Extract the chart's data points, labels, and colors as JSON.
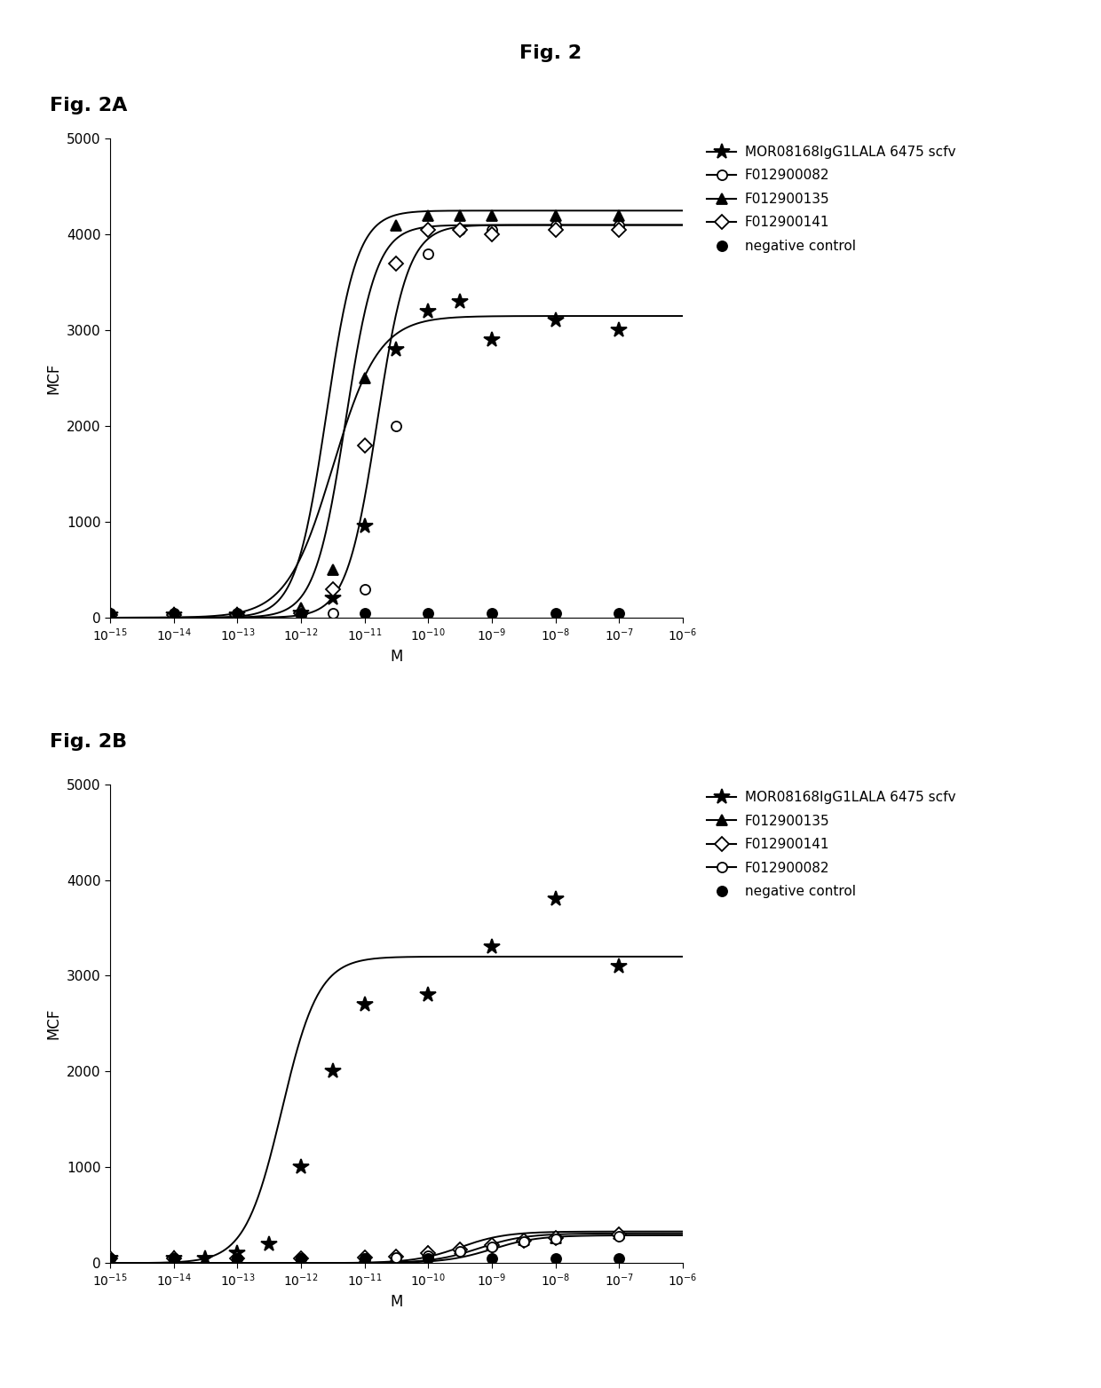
{
  "title": "Fig. 2",
  "fig2a_label": "Fig. 2A",
  "fig2b_label": "Fig. 2B",
  "ylabel": "MCF",
  "xlabel": "M",
  "panel_a": {
    "series": [
      {
        "name": "MOR08168IgG1LALA 6475 scfv",
        "marker": "star",
        "Emax": 3150,
        "EC50_log": -11.5,
        "Hill": 1.2,
        "scatter_x_log": [
          -15.0,
          -14.0,
          -13.0,
          -12.0,
          -11.5,
          -11.0,
          -10.5,
          -10.0,
          -9.5,
          -9.0,
          -8.0,
          -7.0
        ],
        "scatter_y": [
          30,
          30,
          30,
          50,
          200,
          950,
          2800,
          3200,
          3300,
          2900,
          3100,
          3000
        ]
      },
      {
        "name": "F012900082",
        "marker": "circle_open",
        "Emax": 4100,
        "EC50_log": -10.8,
        "Hill": 1.8,
        "scatter_x_log": [
          -15.0,
          -14.0,
          -13.0,
          -12.0,
          -11.5,
          -11.0,
          -10.5,
          -10.0,
          -9.5,
          -9.0,
          -8.0,
          -7.0
        ],
        "scatter_y": [
          30,
          30,
          30,
          30,
          50,
          300,
          2000,
          3800,
          4050,
          4050,
          4100,
          4100
        ]
      },
      {
        "name": "F012900135",
        "marker": "triangle_up",
        "Emax": 4250,
        "EC50_log": -11.6,
        "Hill": 1.8,
        "scatter_x_log": [
          -15.0,
          -14.0,
          -13.0,
          -12.0,
          -11.5,
          -11.0,
          -10.5,
          -10.0,
          -9.5,
          -9.0,
          -8.0,
          -7.0
        ],
        "scatter_y": [
          30,
          30,
          30,
          100,
          500,
          2500,
          4100,
          4200,
          4200,
          4200,
          4200,
          4200
        ]
      },
      {
        "name": "F012900141",
        "marker": "diamond_open",
        "Emax": 4100,
        "EC50_log": -11.3,
        "Hill": 1.8,
        "scatter_x_log": [
          -15.0,
          -14.0,
          -13.0,
          -12.0,
          -11.5,
          -11.0,
          -10.5,
          -10.0,
          -9.5,
          -9.0,
          -8.0,
          -7.0
        ],
        "scatter_y": [
          30,
          30,
          30,
          50,
          300,
          1800,
          3700,
          4050,
          4050,
          4000,
          4050,
          4050
        ]
      },
      {
        "name": "negative control",
        "marker": "circle_filled",
        "Emax": null,
        "EC50_log": null,
        "Hill": null,
        "scatter_x_log": [
          -15.0,
          -14.0,
          -13.0,
          -12.0,
          -11.0,
          -10.0,
          -9.0,
          -8.0,
          -7.0
        ],
        "scatter_y": [
          50,
          50,
          50,
          50,
          50,
          50,
          50,
          50,
          50
        ]
      }
    ]
  },
  "panel_b": {
    "series": [
      {
        "name": "MOR08168IgG1LALA 6475 scfv",
        "marker": "star",
        "Emax": 3200,
        "EC50_log": -12.3,
        "Hill": 1.5,
        "scatter_x_log": [
          -15.0,
          -14.0,
          -13.5,
          -13.0,
          -12.5,
          -12.0,
          -11.5,
          -11.0,
          -10.0,
          -9.0,
          -8.0,
          -7.0
        ],
        "scatter_y": [
          50,
          50,
          50,
          100,
          200,
          1000,
          2000,
          2700,
          2800,
          3300,
          3800,
          3100
        ]
      },
      {
        "name": "F012900135",
        "marker": "triangle_up",
        "Emax": 330,
        "EC50_log": -9.5,
        "Hill": 1.2,
        "scatter_x_log": [
          -15.0,
          -14.0,
          -13.0,
          -12.0,
          -11.0,
          -10.5,
          -10.0,
          -9.5,
          -9.0,
          -8.5,
          -8.0,
          -7.0
        ],
        "scatter_y": [
          50,
          50,
          50,
          50,
          70,
          80,
          120,
          150,
          200,
          240,
          260,
          310
        ]
      },
      {
        "name": "F012900141",
        "marker": "diamond_open",
        "Emax": 310,
        "EC50_log": -9.2,
        "Hill": 1.2,
        "scatter_x_log": [
          -15.0,
          -14.0,
          -13.0,
          -12.0,
          -11.0,
          -10.5,
          -10.0,
          -9.5,
          -9.0,
          -8.5,
          -8.0,
          -7.0
        ],
        "scatter_y": [
          50,
          50,
          50,
          50,
          60,
          70,
          100,
          140,
          190,
          230,
          260,
          300
        ]
      },
      {
        "name": "F012900082",
        "marker": "circle_open",
        "Emax": 290,
        "EC50_log": -9.0,
        "Hill": 1.2,
        "scatter_x_log": [
          -15.0,
          -14.0,
          -13.0,
          -12.0,
          -11.0,
          -10.5,
          -10.0,
          -9.5,
          -9.0,
          -8.5,
          -8.0,
          -7.0
        ],
        "scatter_y": [
          50,
          50,
          50,
          50,
          50,
          60,
          80,
          120,
          170,
          220,
          255,
          280
        ]
      },
      {
        "name": "negative control",
        "marker": "circle_filled",
        "Emax": null,
        "EC50_log": null,
        "Hill": null,
        "scatter_x_log": [
          -15.0,
          -14.0,
          -13.0,
          -12.0,
          -11.0,
          -10.0,
          -9.0,
          -8.0,
          -7.0
        ],
        "scatter_y": [
          50,
          50,
          50,
          50,
          50,
          50,
          50,
          50,
          50
        ]
      }
    ]
  },
  "x_ticks_log": [
    -15,
    -14,
    -13,
    -12,
    -11,
    -10,
    -9,
    -8,
    -7,
    -6
  ],
  "ylim": [
    0,
    5000
  ],
  "yticks": [
    0,
    1000,
    2000,
    3000,
    4000,
    5000
  ],
  "background_color": "#ffffff"
}
